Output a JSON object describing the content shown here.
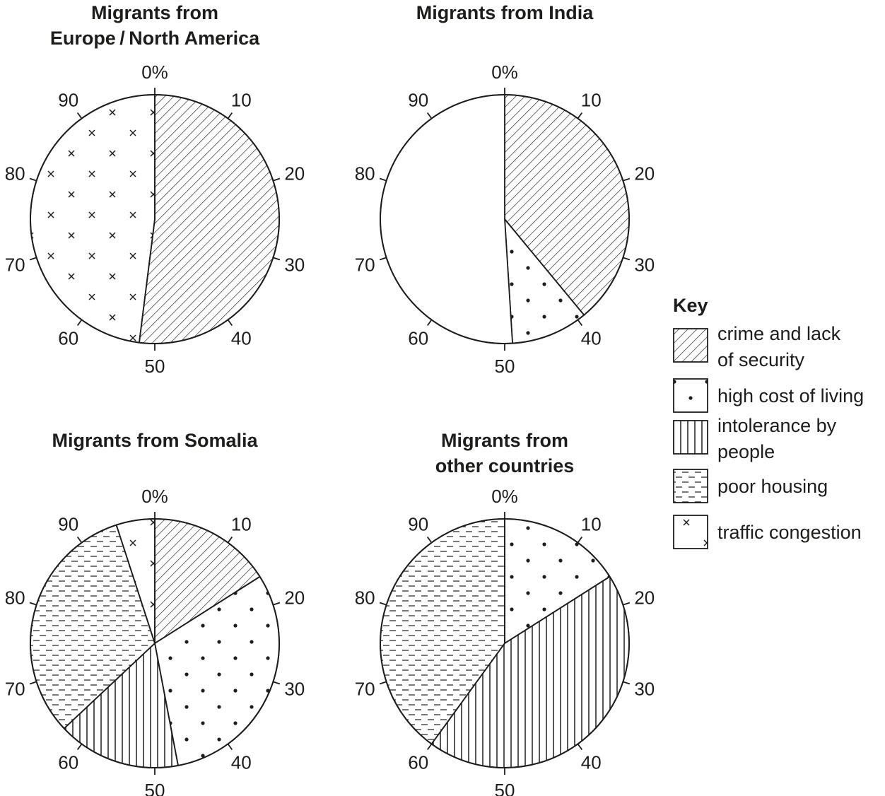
{
  "chart_data": {
    "type": "pie",
    "tick_labels": [
      "0%",
      "10",
      "20",
      "30",
      "40",
      "50",
      "60",
      "70",
      "80",
      "90"
    ],
    "charts": [
      {
        "title_lines": [
          "Migrants from",
          "Europe / North America"
        ],
        "slices": [
          {
            "category": "crime and lack of security",
            "value": 52
          },
          {
            "category": "traffic congestion",
            "value": 48
          }
        ]
      },
      {
        "title_lines": [
          "Migrants from India"
        ],
        "slices": [
          {
            "category": "crime and lack of security",
            "value": 39
          },
          {
            "category": "high cost of living",
            "value": 10
          },
          {
            "category": "unshaded",
            "value": 51
          }
        ]
      },
      {
        "title_lines": [
          "Migrants from Somalia"
        ],
        "slices": [
          {
            "category": "crime and lack of security",
            "value": 16
          },
          {
            "category": "high cost of living",
            "value": 31
          },
          {
            "category": "intolerance by people",
            "value": 16
          },
          {
            "category": "poor housing",
            "value": 32
          },
          {
            "category": "traffic congestion",
            "value": 5
          }
        ]
      },
      {
        "title_lines": [
          "Migrants from",
          "other countries"
        ],
        "slices": [
          {
            "category": "high cost of living",
            "value": 16
          },
          {
            "category": "intolerance by people",
            "value": 44
          },
          {
            "category": "poor housing",
            "value": 40
          }
        ]
      }
    ],
    "legend": {
      "title": "Key",
      "position": "right",
      "items": [
        {
          "pattern": "crime",
          "lines": [
            "crime and lack",
            "of security"
          ]
        },
        {
          "pattern": "cost",
          "lines": [
            "high cost of living"
          ]
        },
        {
          "pattern": "intolerance",
          "lines": [
            "intolerance by",
            "people"
          ]
        },
        {
          "pattern": "housing",
          "lines": [
            "poor housing"
          ]
        },
        {
          "pattern": "traffic",
          "lines": [
            "traffic congestion"
          ]
        }
      ]
    }
  }
}
